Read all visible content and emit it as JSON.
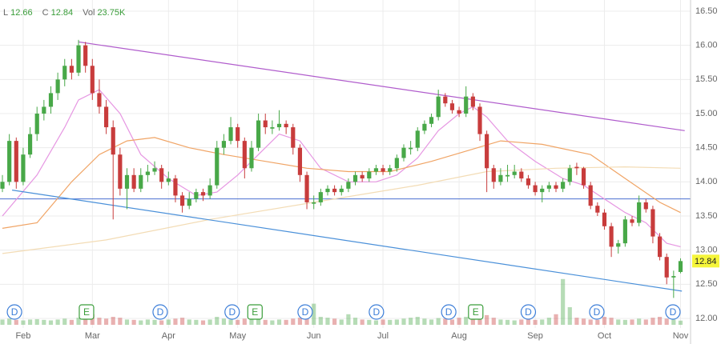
{
  "chart_data": {
    "type": "candlestick",
    "header": [
      {
        "name": "L",
        "value": 12.66
      },
      {
        "name": "C",
        "value": 12.84
      },
      {
        "name": "Vol",
        "value": 23.75,
        "label": "23.75K"
      }
    ],
    "last_price": 12.84,
    "categories": [
      null,
      null,
      null,
      "Feb",
      null,
      null,
      null,
      null,
      null,
      null,
      null,
      null,
      null,
      "Mar",
      null,
      null,
      null,
      null,
      null,
      null,
      null,
      null,
      null,
      null,
      "Apr",
      null,
      null,
      null,
      null,
      null,
      null,
      null,
      null,
      null,
      "May",
      null,
      null,
      null,
      null,
      null,
      null,
      null,
      null,
      null,
      null,
      "Jun",
      null,
      null,
      null,
      null,
      null,
      null,
      null,
      null,
      null,
      "Jul",
      null,
      null,
      null,
      null,
      null,
      null,
      null,
      null,
      null,
      null,
      "Aug",
      null,
      null,
      null,
      null,
      null,
      null,
      null,
      null,
      null,
      null,
      "Sep",
      null,
      null,
      null,
      null,
      null,
      null,
      null,
      null,
      null,
      "Oct",
      null,
      null,
      null,
      null,
      null,
      null,
      null,
      null,
      null,
      null,
      "Nov"
    ],
    "xlim": [
      -0.35,
      99.45
    ],
    "ylim": [
      12.0,
      16.5
    ],
    "yticks": [
      {
        "value": 12.0,
        "label": "12.00"
      },
      {
        "value": 12.5,
        "label": "12.50"
      },
      {
        "value": 13.0,
        "label": "13.00"
      },
      {
        "value": 13.5,
        "label": "13.50"
      },
      {
        "value": 14.0,
        "label": "14.00"
      },
      {
        "value": 14.5,
        "label": "14.50"
      },
      {
        "value": 15.0,
        "label": "15.00"
      },
      {
        "value": 15.5,
        "label": "15.50"
      },
      {
        "value": 16.0,
        "label": "16.00"
      },
      {
        "value": 16.5,
        "label": "16.50"
      }
    ],
    "grid": true,
    "up_color": "#48a848",
    "down_color": "#c83c3c",
    "ohlc": [
      [
        13.9,
        14.1,
        13.85,
        14.0
      ],
      [
        14.0,
        14.7,
        13.95,
        14.6
      ],
      [
        14.6,
        14.65,
        13.9,
        14.0
      ],
      [
        14.0,
        14.5,
        13.95,
        14.4
      ],
      [
        14.4,
        14.8,
        14.35,
        14.7
      ],
      [
        14.7,
        15.1,
        14.6,
        15.0
      ],
      [
        15.0,
        15.2,
        14.9,
        15.1
      ],
      [
        15.1,
        15.4,
        15.0,
        15.3
      ],
      [
        15.3,
        15.6,
        15.2,
        15.5
      ],
      [
        15.5,
        15.8,
        15.4,
        15.7
      ],
      [
        15.7,
        15.8,
        15.5,
        15.6
      ],
      [
        15.6,
        16.08,
        15.55,
        16.0
      ],
      [
        16.0,
        16.05,
        15.6,
        15.7
      ],
      [
        15.7,
        15.8,
        15.2,
        15.3
      ],
      [
        15.3,
        15.5,
        15.0,
        15.1
      ],
      [
        15.1,
        15.2,
        14.7,
        14.8
      ],
      [
        14.8,
        14.9,
        13.45,
        14.4
      ],
      [
        14.4,
        14.5,
        13.8,
        13.9
      ],
      [
        13.9,
        14.2,
        13.6,
        14.1
      ],
      [
        14.1,
        14.2,
        13.85,
        13.9
      ],
      [
        13.9,
        14.2,
        13.85,
        14.1
      ],
      [
        14.1,
        14.25,
        14.0,
        14.15
      ],
      [
        14.15,
        14.3,
        14.1,
        14.2
      ],
      [
        14.2,
        14.25,
        13.9,
        14.0
      ],
      [
        14.0,
        14.15,
        13.95,
        14.05
      ],
      [
        14.05,
        14.1,
        13.7,
        13.8
      ],
      [
        13.8,
        13.85,
        13.55,
        13.65
      ],
      [
        13.65,
        13.85,
        13.6,
        13.75
      ],
      [
        13.75,
        13.9,
        13.7,
        13.85
      ],
      [
        13.85,
        13.9,
        13.72,
        13.8
      ],
      [
        13.8,
        14.05,
        13.75,
        13.95
      ],
      [
        13.95,
        14.6,
        13.9,
        14.5
      ],
      [
        14.5,
        14.7,
        14.4,
        14.6
      ],
      [
        14.6,
        14.95,
        14.55,
        14.8
      ],
      [
        14.8,
        14.85,
        14.5,
        14.6
      ],
      [
        14.6,
        14.65,
        14.05,
        14.2
      ],
      [
        14.2,
        14.6,
        14.15,
        14.5
      ],
      [
        14.5,
        15.0,
        14.45,
        14.9
      ],
      [
        14.9,
        15.0,
        14.7,
        14.8
      ],
      [
        14.78,
        14.9,
        14.7,
        14.8
      ],
      [
        14.8,
        15.05,
        14.75,
        14.85
      ],
      [
        14.85,
        14.9,
        14.7,
        14.8
      ],
      [
        14.8,
        14.85,
        14.4,
        14.5
      ],
      [
        14.5,
        14.55,
        14.0,
        14.1
      ],
      [
        14.1,
        14.15,
        13.6,
        13.7
      ],
      [
        13.68,
        13.8,
        13.6,
        13.7
      ],
      [
        13.7,
        13.9,
        13.65,
        13.85
      ],
      [
        13.85,
        13.95,
        13.8,
        13.9
      ],
      [
        13.9,
        13.95,
        13.8,
        13.85
      ],
      [
        13.85,
        13.95,
        13.8,
        13.9
      ],
      [
        13.9,
        14.05,
        13.85,
        14.0
      ],
      [
        14.0,
        14.15,
        13.95,
        14.1
      ],
      [
        14.1,
        14.15,
        14.0,
        14.05
      ],
      [
        14.05,
        14.2,
        14.0,
        14.15
      ],
      [
        14.15,
        14.25,
        14.1,
        14.2
      ],
      [
        14.2,
        14.25,
        14.1,
        14.15
      ],
      [
        14.15,
        14.25,
        14.1,
        14.2
      ],
      [
        14.2,
        14.4,
        14.15,
        14.35
      ],
      [
        14.35,
        14.55,
        14.3,
        14.5
      ],
      [
        14.48,
        14.6,
        14.4,
        14.5
      ],
      [
        14.5,
        14.8,
        14.45,
        14.75
      ],
      [
        14.75,
        14.9,
        14.7,
        14.85
      ],
      [
        14.85,
        15.0,
        14.8,
        14.95
      ],
      [
        14.95,
        15.35,
        14.9,
        15.25
      ],
      [
        15.25,
        15.3,
        15.1,
        15.15
      ],
      [
        15.15,
        15.2,
        15.0,
        15.05
      ],
      [
        15.05,
        15.1,
        14.95,
        15.0
      ],
      [
        15.0,
        15.4,
        14.95,
        15.25
      ],
      [
        15.25,
        15.3,
        15.05,
        15.1
      ],
      [
        15.1,
        15.15,
        14.6,
        14.7
      ],
      [
        14.7,
        14.75,
        13.85,
        14.2
      ],
      [
        14.2,
        14.25,
        13.9,
        14.0
      ],
      [
        14.0,
        14.2,
        13.95,
        14.1
      ],
      [
        14.08,
        14.25,
        14.0,
        14.1
      ],
      [
        14.1,
        14.25,
        14.05,
        14.15
      ],
      [
        14.15,
        14.2,
        14.0,
        14.05
      ],
      [
        14.05,
        14.1,
        13.9,
        13.95
      ],
      [
        13.95,
        14.0,
        13.8,
        13.85
      ],
      [
        13.85,
        13.95,
        13.7,
        13.9
      ],
      [
        13.9,
        14.0,
        13.85,
        13.95
      ],
      [
        13.95,
        14.0,
        13.85,
        13.9
      ],
      [
        13.9,
        14.05,
        13.85,
        14.0
      ],
      [
        14.0,
        14.25,
        13.95,
        14.2
      ],
      [
        14.22,
        14.28,
        14.1,
        14.2
      ],
      [
        14.2,
        14.22,
        13.9,
        13.95
      ],
      [
        13.95,
        14.0,
        13.6,
        13.65
      ],
      [
        13.65,
        13.7,
        13.5,
        13.55
      ],
      [
        13.55,
        13.6,
        13.3,
        13.35
      ],
      [
        13.35,
        13.4,
        12.9,
        13.05
      ],
      [
        13.05,
        13.15,
        12.95,
        13.1
      ],
      [
        13.1,
        13.5,
        13.05,
        13.45
      ],
      [
        13.45,
        13.5,
        13.35,
        13.4
      ],
      [
        13.4,
        13.8,
        13.35,
        13.7
      ],
      [
        13.7,
        13.75,
        13.55,
        13.6
      ],
      [
        13.6,
        13.65,
        13.1,
        13.2
      ],
      [
        13.2,
        13.25,
        12.85,
        12.9
      ],
      [
        12.9,
        12.95,
        12.5,
        12.6
      ],
      [
        12.6,
        12.7,
        12.3,
        12.62
      ],
      [
        12.68,
        12.88,
        12.66,
        12.84
      ]
    ],
    "volume": [
      30,
      35,
      28,
      25,
      30,
      32,
      28,
      25,
      30,
      35,
      28,
      40,
      45,
      60,
      40,
      35,
      45,
      40,
      30,
      28,
      25,
      30,
      28,
      25,
      30,
      35,
      40,
      30,
      28,
      25,
      30,
      45,
      35,
      30,
      28,
      35,
      30,
      32,
      28,
      25,
      30,
      28,
      35,
      40,
      55,
      120,
      45,
      40,
      35,
      30,
      60,
      40,
      30,
      28,
      25,
      30,
      28,
      30,
      35,
      40,
      45,
      35,
      30,
      38,
      35,
      30,
      40,
      45,
      35,
      50,
      55,
      40,
      30,
      28,
      25,
      30,
      35,
      28,
      30,
      40,
      60,
      260,
      100,
      40,
      35,
      30,
      28,
      45,
      40,
      30,
      28,
      30,
      35,
      30,
      40,
      45,
      35,
      30,
      23.75
    ],
    "vol_ylim": [
      0,
      300
    ],
    "averages": [
      {
        "color": "#e696e2",
        "x": [
          0,
          5,
          9,
          11,
          14,
          17,
          20,
          24,
          28,
          31,
          34,
          37,
          40,
          43,
          46,
          50,
          54,
          57,
          60,
          63,
          66,
          68,
          70,
          73,
          77,
          81,
          84,
          87,
          90,
          93,
          96,
          98
        ],
        "values": [
          13.5,
          14.1,
          14.8,
          15.2,
          15.35,
          15.0,
          14.4,
          14.05,
          13.8,
          13.85,
          14.1,
          14.4,
          14.7,
          14.6,
          14.2,
          14.0,
          14.0,
          14.1,
          14.35,
          14.75,
          15.0,
          15.1,
          14.95,
          14.6,
          14.3,
          14.05,
          13.95,
          13.75,
          13.55,
          13.4,
          13.1,
          13.05
        ]
      },
      {
        "color": "#f0a465",
        "x": [
          0,
          5,
          10,
          14,
          18,
          22,
          27,
          32,
          38,
          44,
          50,
          56,
          62,
          67,
          72,
          78,
          85,
          90,
          95,
          98
        ],
        "values": [
          13.32,
          13.4,
          14.0,
          14.4,
          14.6,
          14.65,
          14.5,
          14.4,
          14.3,
          14.2,
          14.15,
          14.15,
          14.3,
          14.45,
          14.6,
          14.55,
          14.4,
          14.05,
          13.7,
          13.55
        ]
      },
      {
        "color": "#f3dcb5",
        "x": [
          0,
          15,
          30,
          45,
          60,
          70,
          80,
          90,
          98
        ],
        "values": [
          12.95,
          13.15,
          13.45,
          13.7,
          13.95,
          14.15,
          14.2,
          14.22,
          14.2
        ]
      }
    ],
    "trendlines": [
      {
        "color": "#b05ccc",
        "x": [
          11,
          98.6
        ],
        "values": [
          16.05,
          14.75
        ]
      },
      {
        "color": "#4a90d9",
        "x": [
          1.4,
          98.2
        ],
        "values": [
          13.88,
          12.4
        ]
      }
    ],
    "hlines": [
      {
        "color": "#4a6fd0",
        "value": 13.75
      }
    ],
    "events": [
      {
        "x": 1.74,
        "label": "D"
      },
      {
        "x": 12.15,
        "label": "E"
      },
      {
        "x": 22.8,
        "label": "D"
      },
      {
        "x": 33.2,
        "label": "D"
      },
      {
        "x": 36.5,
        "label": "E"
      },
      {
        "x": 43.75,
        "label": "D"
      },
      {
        "x": 54.05,
        "label": "D"
      },
      {
        "x": 64.5,
        "label": "D"
      },
      {
        "x": 68.4,
        "label": "E"
      },
      {
        "x": 76.0,
        "label": "D"
      },
      {
        "x": 85.9,
        "label": "D"
      },
      {
        "x": 96.9,
        "label": "D"
      }
    ]
  }
}
